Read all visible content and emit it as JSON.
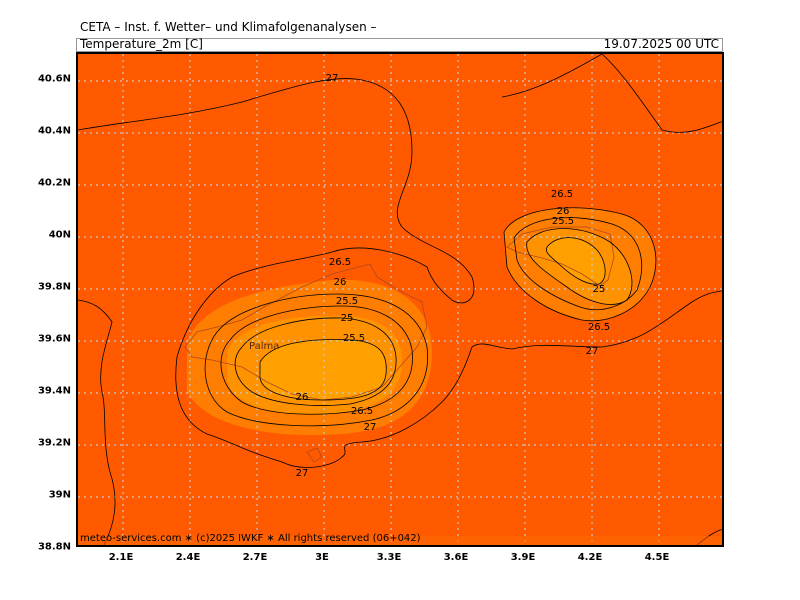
{
  "header": {
    "organization": "CETA – Inst. f. Wetter– und Klimafolgenanalysen –",
    "variable_title": "Temperature_2m [C]",
    "valid_time": "19.07.2025 00 UTC"
  },
  "map": {
    "region": "Mallorca / Balearic Sea",
    "lon_range": [
      1.85,
      4.85
    ],
    "lat_range": [
      38.8,
      40.7
    ],
    "lon_ticks": [
      "2.1E",
      "2.4E",
      "2.7E",
      "3E",
      "3.3E",
      "3.6E",
      "3.9E",
      "4.2E",
      "4.5E"
    ],
    "lat_ticks": [
      "40.6N",
      "40.4N",
      "40.2N",
      "40N",
      "39.8N",
      "39.6N",
      "39.4N",
      "39.2N",
      "39N",
      "38.8N"
    ],
    "grid": true,
    "place_labels": [
      "Palma"
    ],
    "fill_colors": {
      "above_26_5": "#ff5a00",
      "25_5_to_26_5": "#ff8c00",
      "below_25_5": "#ffa000"
    }
  },
  "contours": {
    "labels": [
      "27",
      "27",
      "26.5",
      "26",
      "25.5",
      "25",
      "25.5",
      "26",
      "26.5",
      "27",
      "26.5",
      "26",
      "25.5",
      "25",
      "26.5",
      "27"
    ]
  },
  "footer": {
    "copyright": "meteo-services.com ∗ (c)2025 IWKF ∗ All rights reserved (06+042)"
  }
}
